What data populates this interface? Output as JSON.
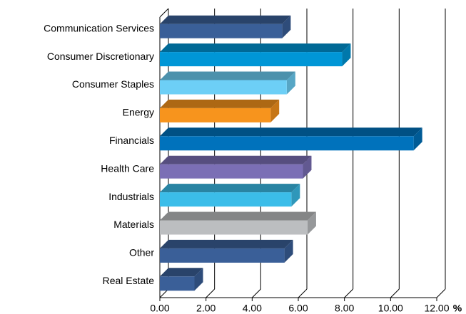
{
  "chart_data": {
    "type": "bar",
    "orientation": "horizontal",
    "three_d": true,
    "x_label": "%",
    "categories": [
      "Communication Services",
      "Consumer Discretionary",
      "Consumer Staples",
      "Energy",
      "Financials",
      "Health Care",
      "Industrials",
      "Materials",
      "Other",
      "Real Estate"
    ],
    "values": [
      5.3,
      7.9,
      5.5,
      4.8,
      11.0,
      6.2,
      5.7,
      6.4,
      5.4,
      1.5
    ],
    "colors": [
      "#3a5f98",
      "#0096d6",
      "#6dcff6",
      "#f7941d",
      "#0072bc",
      "#7b6fb5",
      "#3bbde9",
      "#bcbec0",
      "#3a5f98",
      "#3a5f98"
    ],
    "xlim": [
      0,
      12
    ],
    "xticks": [
      {
        "value": 0,
        "label": "0.00"
      },
      {
        "value": 2,
        "label": "2.00"
      },
      {
        "value": 4,
        "label": "4.00"
      },
      {
        "value": 6,
        "label": "6.00"
      },
      {
        "value": 8,
        "label": "8.00"
      },
      {
        "value": 10,
        "label": "10.00"
      },
      {
        "value": 12,
        "label": "12.00"
      }
    ],
    "grid": true
  }
}
